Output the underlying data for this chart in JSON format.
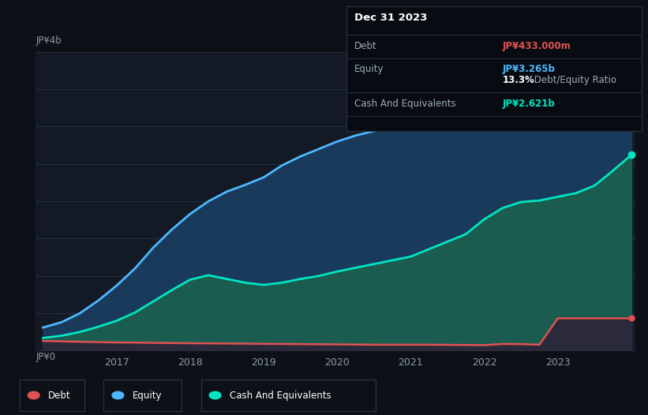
{
  "background_color": "#0d1117",
  "plot_bg_color": "#131a25",
  "y_label_4b": "JP¥4b",
  "y_label_0": "JP¥0",
  "x_ticks": [
    2017,
    2018,
    2019,
    2020,
    2021,
    2022,
    2023
  ],
  "y_max": 4000000000,
  "debt_color": "#e05252",
  "equity_color": "#4db8ff",
  "cash_color": "#00e5c0",
  "equity_fill_color": "#1a3a5c",
  "cash_fill_color": "#1a5c50",
  "debt_fill_color": "#2a2a3a",
  "grid_color": "#252d3d",
  "tooltip_bg": "#080c12",
  "tooltip_border": "#2a3040",
  "tooltip_title": "Dec 31 2023",
  "tooltip_debt_label": "Debt",
  "tooltip_debt_value": "JP¥433.000m",
  "tooltip_equity_label": "Equity",
  "tooltip_equity_value": "JP¥3.265b",
  "tooltip_ratio_pct": "13.3%",
  "tooltip_ratio_label": " Debt/Equity Ratio",
  "tooltip_cash_label": "Cash And Equivalents",
  "tooltip_cash_value": "JP¥2.621b",
  "legend_items": [
    "Debt",
    "Equity",
    "Cash And Equivalents"
  ],
  "legend_colors": [
    "#e05252",
    "#4db8ff",
    "#00e5c0"
  ],
  "years": [
    2016.0,
    2016.25,
    2016.5,
    2016.75,
    2017.0,
    2017.25,
    2017.5,
    2017.75,
    2018.0,
    2018.25,
    2018.5,
    2018.75,
    2019.0,
    2019.25,
    2019.5,
    2019.75,
    2020.0,
    2020.25,
    2020.5,
    2020.75,
    2021.0,
    2021.25,
    2021.5,
    2021.75,
    2022.0,
    2022.25,
    2022.5,
    2022.75,
    2023.0,
    2023.25,
    2023.5,
    2023.75,
    2024.0
  ],
  "equity": [
    310000000,
    380000000,
    500000000,
    670000000,
    870000000,
    1100000000,
    1380000000,
    1620000000,
    1830000000,
    2000000000,
    2130000000,
    2220000000,
    2320000000,
    2480000000,
    2600000000,
    2700000000,
    2800000000,
    2880000000,
    2940000000,
    2980000000,
    3050000000,
    3130000000,
    3200000000,
    3270000000,
    3560000000,
    3640000000,
    3600000000,
    3540000000,
    3500000000,
    3470000000,
    3420000000,
    3310000000,
    3265000000
  ],
  "cash": [
    170000000,
    200000000,
    250000000,
    320000000,
    400000000,
    510000000,
    660000000,
    810000000,
    950000000,
    1010000000,
    960000000,
    910000000,
    880000000,
    910000000,
    960000000,
    1000000000,
    1060000000,
    1110000000,
    1160000000,
    1210000000,
    1260000000,
    1360000000,
    1460000000,
    1560000000,
    1760000000,
    1910000000,
    1990000000,
    2010000000,
    2060000000,
    2110000000,
    2210000000,
    2410000000,
    2621000000
  ],
  "debt": [
    130000000,
    125000000,
    120000000,
    115000000,
    110000000,
    108000000,
    105000000,
    102000000,
    100000000,
    98000000,
    96000000,
    94000000,
    92000000,
    90000000,
    88000000,
    86000000,
    84000000,
    82000000,
    80000000,
    80000000,
    80000000,
    80000000,
    78000000,
    76000000,
    74000000,
    90000000,
    88000000,
    80000000,
    433000000,
    433000000,
    433000000,
    433000000,
    433000000
  ]
}
